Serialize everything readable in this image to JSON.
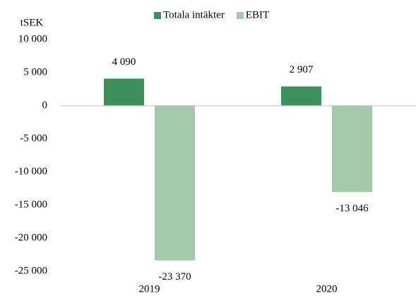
{
  "chart_data": {
    "type": "bar",
    "y_label": "tSEK",
    "categories": [
      "2019",
      "2020"
    ],
    "series": [
      {
        "name": "Totala intäkter",
        "color": "#3d8f5c",
        "values": [
          4090,
          2907
        ],
        "value_labels": [
          "4 090",
          "2 907"
        ]
      },
      {
        "name": "EBIT",
        "color": "#a4c9a9",
        "values": [
          -23370,
          -13046
        ],
        "value_labels": [
          "-23 370",
          "-13 046"
        ]
      }
    ],
    "ylim": [
      -25000,
      10000
    ],
    "yticks": [
      {
        "value": 10000,
        "label": "10 000"
      },
      {
        "value": 5000,
        "label": "5 000"
      },
      0,
      {
        "value": -5000,
        "label": "-5 000"
      },
      {
        "value": -10000,
        "label": "-10 000"
      },
      {
        "value": -15000,
        "label": "-15 000"
      },
      {
        "value": -20000,
        "label": "-20 000"
      },
      {
        "value": -25000,
        "label": "-25 000"
      }
    ],
    "legend": "top",
    "grid": false
  }
}
